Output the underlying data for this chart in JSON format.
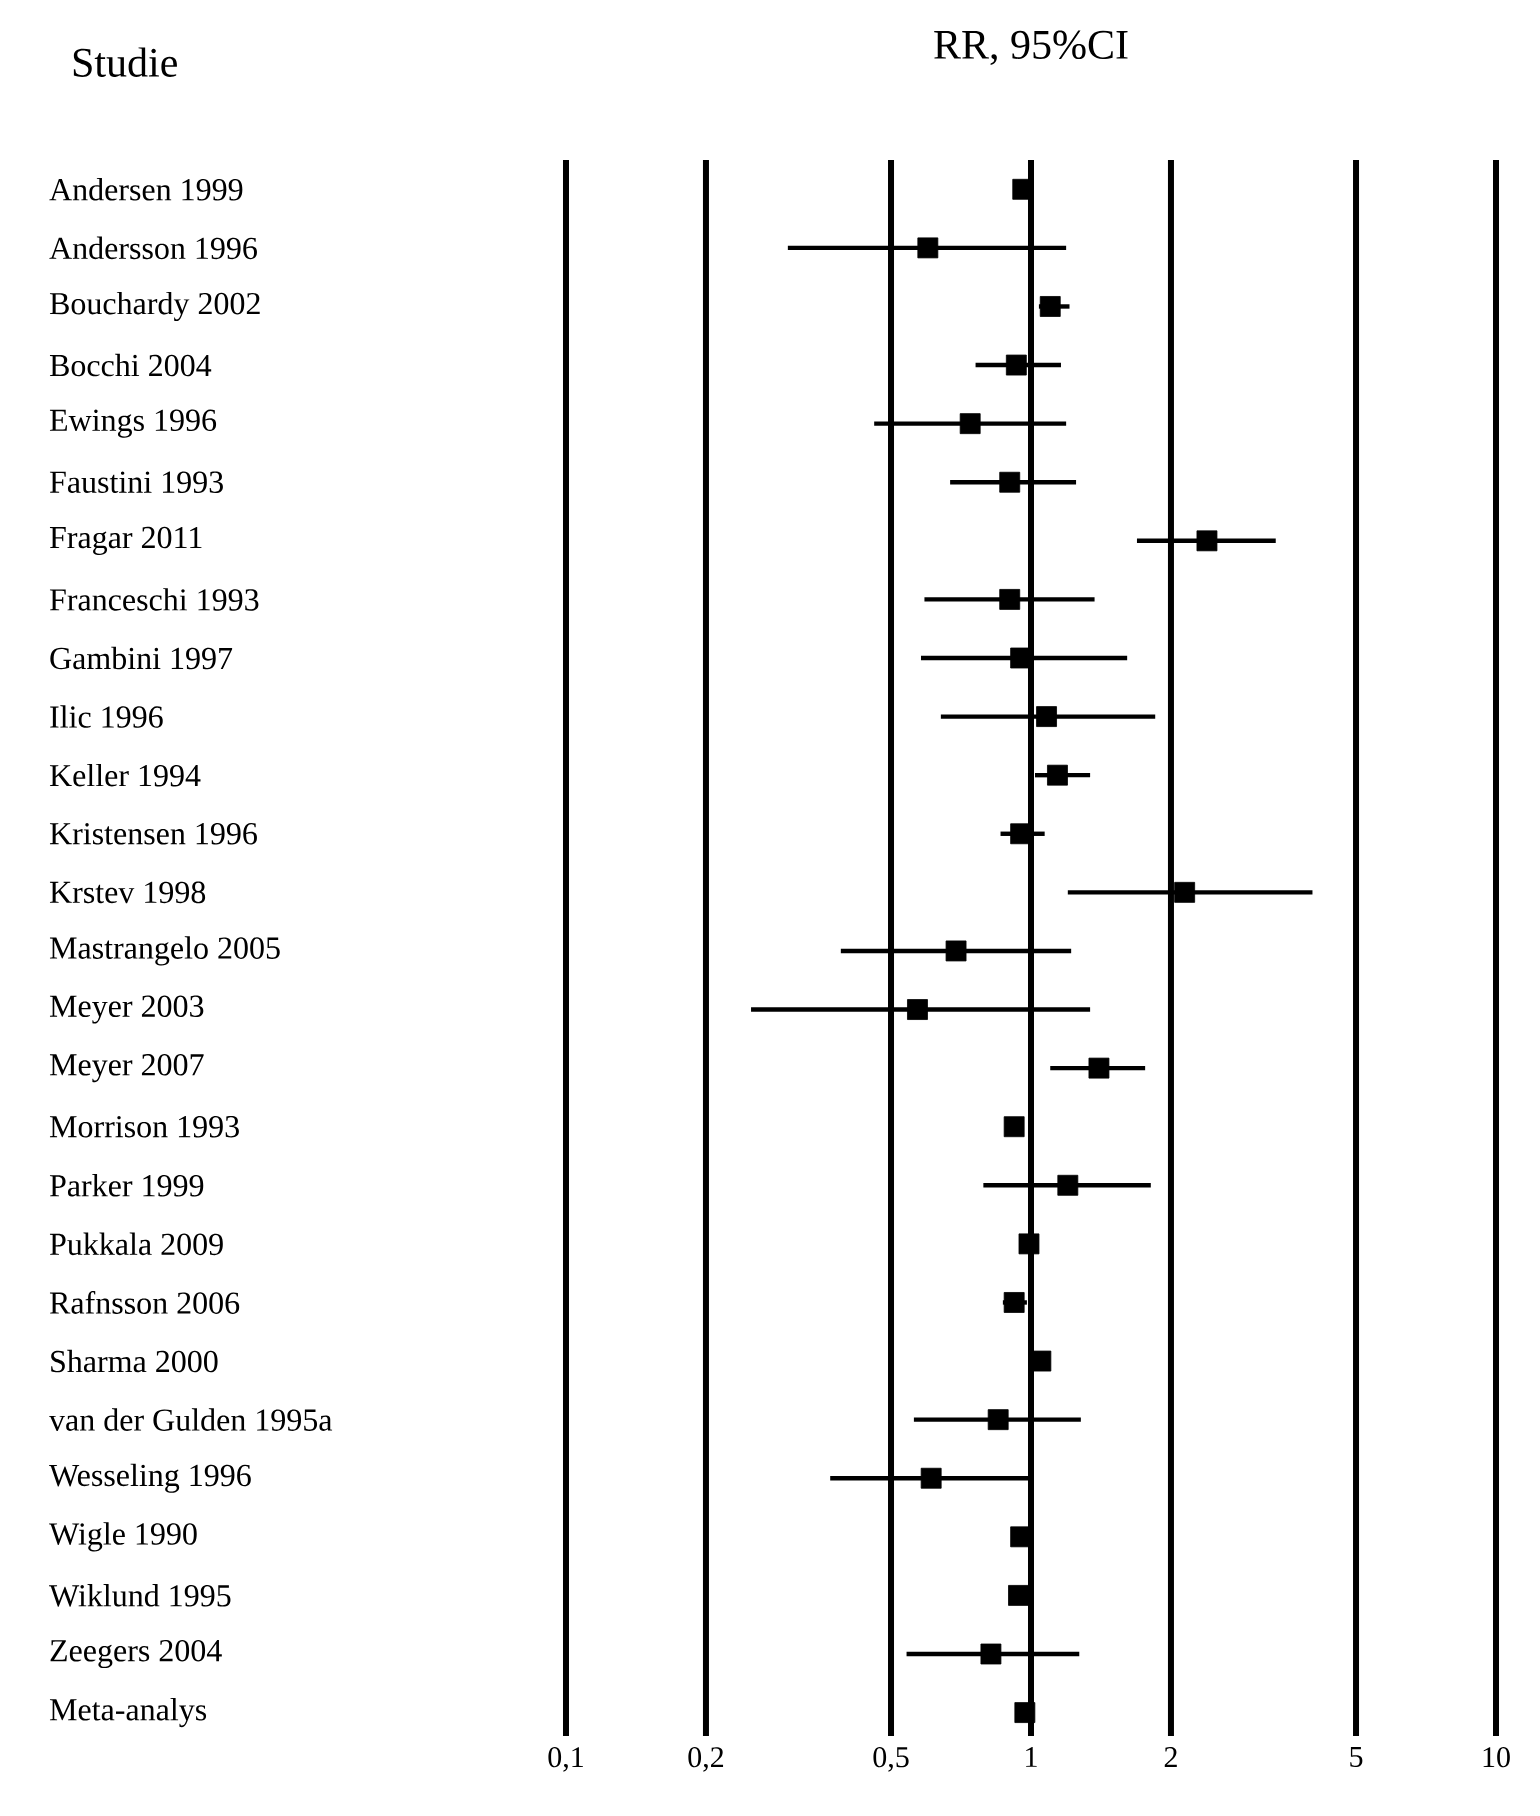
{
  "chart_data": {
    "type": "scatter",
    "title": "RR, 95%CI",
    "ylabel": "Studie",
    "orientation": "horizontal",
    "log": "x",
    "grid": "x",
    "marker": "square",
    "color": "#000000",
    "categories": [
      "Andersen 1999",
      "Andersson 1996",
      "Bouchardy 2002",
      "Bocchi 2004",
      "Ewings 1996",
      "Faustini 1993",
      "Fragar 2011",
      "Franceschi 1993",
      "Gambini 1997",
      "Ilic 1996",
      "Keller 1994",
      "Kristensen 1996",
      "Krstev 1998",
      "Mastrangelo 2005",
      "Meyer 2003",
      "Meyer 2007",
      "Morrison 1993",
      "Parker 1999",
      "Pukkala 2009",
      "Rafnsson 2006",
      "Sharma 2000",
      "van der Gulden 1995a",
      "Wesseling 1996",
      "Wigle 1990",
      "Wiklund 1995",
      "Zeegers 2004",
      "Meta-analys"
    ],
    "values": [
      0.96,
      0.6,
      1.1,
      0.93,
      0.74,
      0.9,
      2.39,
      0.9,
      0.95,
      1.08,
      1.14,
      0.95,
      2.14,
      0.69,
      0.57,
      1.4,
      0.92,
      1.2,
      0.99,
      0.92,
      1.05,
      0.85,
      0.61,
      0.95,
      0.94,
      0.82,
      0.97
    ],
    "errors": [
      null,
      [
        0.3,
        1.19
      ],
      [
        1.04,
        1.21
      ],
      [
        0.76,
        1.16
      ],
      [
        0.46,
        1.19
      ],
      [
        0.67,
        1.25
      ],
      [
        1.69,
        3.36
      ],
      [
        0.59,
        1.37
      ],
      [
        0.58,
        1.61
      ],
      [
        0.64,
        1.85
      ],
      [
        1.02,
        1.34
      ],
      [
        0.86,
        1.07
      ],
      [
        1.2,
        4.03
      ],
      [
        0.39,
        1.22
      ],
      [
        0.25,
        1.34
      ],
      [
        1.1,
        1.76
      ],
      null,
      [
        0.79,
        1.81
      ],
      null,
      [
        0.87,
        0.98
      ],
      null,
      [
        0.56,
        1.28
      ],
      [
        0.37,
        0.99
      ],
      [
        0.91,
        1.0
      ],
      null,
      [
        0.54,
        1.27
      ],
      null
    ],
    "xlim": [
      0.1,
      10
    ],
    "xticks": [
      {
        "value": 0.1,
        "label": "0,1"
      },
      {
        "value": 0.2,
        "label": "0,2"
      },
      {
        "value": 0.5,
        "label": "0,5"
      },
      1,
      2,
      5,
      10
    ]
  }
}
